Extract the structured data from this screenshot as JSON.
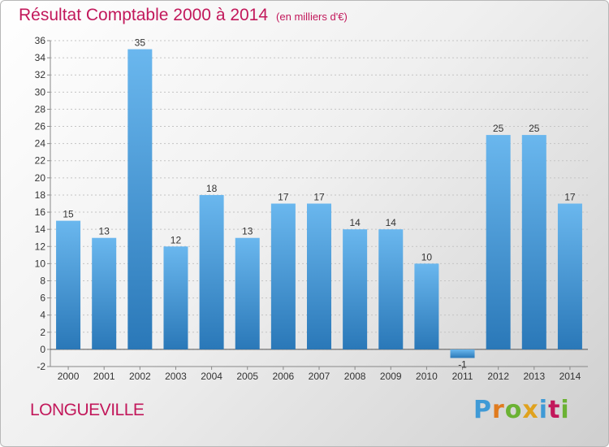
{
  "title": "Résultat Comptable 2000 à 2014",
  "subtitle": "(en milliers d'€)",
  "commune": "LONGUEVILLE",
  "brand": {
    "text": "Proxiti",
    "letter_colors": [
      "#3f9ad6",
      "#e07b1e",
      "#6bb233",
      "#e0a21e",
      "#3f9ad6",
      "#c2185b",
      "#6bb233"
    ]
  },
  "colors": {
    "bar_light": "#6ab7ee",
    "bar_dark": "#2a78b8",
    "axis": "#888888",
    "grid": "#c4c4c4",
    "title": "#c2185b"
  },
  "chart_data": {
    "type": "bar",
    "categories": [
      "2000",
      "2001",
      "2002",
      "2003",
      "2004",
      "2005",
      "2006",
      "2007",
      "2008",
      "2009",
      "2010",
      "2011",
      "2012",
      "2013",
      "2014"
    ],
    "values": [
      15,
      13,
      35,
      12,
      18,
      13,
      17,
      17,
      14,
      14,
      10,
      -1,
      25,
      25,
      17
    ],
    "data_labels": [
      "15",
      "13",
      "35",
      "12",
      "18",
      "13",
      "17",
      "17",
      "14",
      "14",
      "10",
      "-1",
      "25",
      "25",
      "17"
    ],
    "ylim": [
      -2,
      36
    ],
    "yticks": [
      -2,
      0,
      2,
      4,
      6,
      8,
      10,
      12,
      14,
      16,
      18,
      20,
      22,
      24,
      26,
      28,
      30,
      32,
      34,
      36
    ],
    "grid": true
  }
}
